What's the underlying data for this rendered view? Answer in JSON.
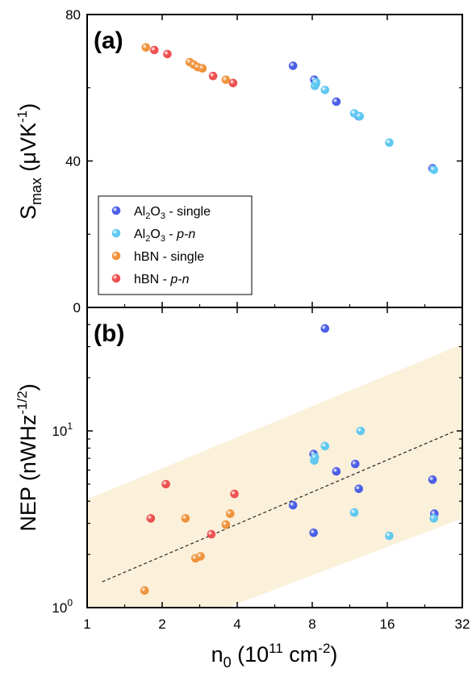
{
  "chart_data": [
    {
      "type": "scatter",
      "panel_label": "(a)",
      "ylabel": {
        "main": "S",
        "sub": "max",
        "unit": " (μVK",
        "sup": "-1",
        "close": ")"
      },
      "x_scale": "log2",
      "xlim": [
        1,
        32
      ],
      "ylim": [
        0,
        80
      ],
      "x_ticks": [
        1,
        2,
        4,
        8,
        16,
        32
      ],
      "y_ticks": [
        {
          "value": 0,
          "label": "0"
        },
        {
          "value": 40,
          "label": "40"
        },
        {
          "value": 80,
          "label": "80"
        }
      ],
      "legend": {
        "placement": "lower-left",
        "entries": [
          {
            "parts": [
              "Al",
              "2",
              "O",
              "3",
              " - single"
            ],
            "italic": false,
            "color": "#4a5ee8"
          },
          {
            "parts": [
              "Al",
              "2",
              "O",
              "3",
              " - ",
              "p-n"
            ],
            "italic": true,
            "color": "#5ec8f0"
          },
          {
            "parts": [
              "hBN - single"
            ],
            "italic": false,
            "color": "#f0923a"
          },
          {
            "parts": [
              "hBN - ",
              "p-n"
            ],
            "italic": true,
            "color": "#ee5050"
          }
        ]
      },
      "series": [
        {
          "name": "Al2O3 - single",
          "color": "#4a5ee8",
          "points": [
            [
              6.7,
              66
            ],
            [
              8.15,
              62.2
            ],
            [
              10,
              56.2
            ],
            [
              12.3,
              52.2
            ],
            [
              24.3,
              38
            ],
            [
              8.25,
              61
            ]
          ]
        },
        {
          "name": "Al2O3 - p-n",
          "color": "#5ec8f0",
          "points": [
            [
              8.2,
              60.5
            ],
            [
              9.0,
              59.4
            ],
            [
              11.8,
              53
            ],
            [
              12.4,
              52.2
            ],
            [
              16.3,
              45
            ],
            [
              24.6,
              37.6
            ],
            [
              8.3,
              61.5
            ]
          ]
        },
        {
          "name": "hBN - single",
          "color": "#f0923a",
          "points": [
            [
              1.72,
              71
            ],
            [
              2.58,
              67
            ],
            [
              2.68,
              66.3
            ],
            [
              2.78,
              65.6
            ],
            [
              2.9,
              65.3
            ],
            [
              3.6,
              62.2
            ]
          ]
        },
        {
          "name": "hBN - p-n",
          "color": "#ee5050",
          "points": [
            [
              1.86,
              70.3
            ],
            [
              2.1,
              69.2
            ],
            [
              3.2,
              63.2
            ],
            [
              3.85,
              61.3
            ]
          ]
        }
      ]
    },
    {
      "type": "scatter",
      "panel_label": "(b)",
      "ylabel": {
        "main": "NEP (nWHz",
        "sup": "-1/2",
        "close": ")"
      },
      "xlabel": {
        "main": "n",
        "sub": "0",
        "unit": "  (10",
        "sup": "11",
        "rest": " cm",
        "sup2": "-2",
        "close": ")"
      },
      "x_scale": "log2",
      "y_scale": "log10",
      "xlim": [
        1,
        32
      ],
      "ylim": [
        1,
        50
      ],
      "x_ticks": [
        {
          "value": 1,
          "label": "1"
        },
        {
          "value": 2,
          "label": "2"
        },
        {
          "value": 4,
          "label": "4"
        },
        {
          "value": 8,
          "label": "8"
        },
        {
          "value": 16,
          "label": "16"
        },
        {
          "value": 32,
          "label": "32"
        }
      ],
      "y_ticks": [
        {
          "value": 1,
          "base": "10",
          "exp": "0"
        },
        {
          "value": 10,
          "base": "10",
          "exp": "1"
        }
      ],
      "fit_line": {
        "x": [
          1.15,
          29.5
        ],
        "y": [
          1.4,
          9.9
        ],
        "style": "dashed"
      },
      "confidence_band": {
        "x": [
          1,
          32
        ],
        "upper": [
          4.1,
          31
        ],
        "lower": [
          0.5,
          3.2
        ],
        "color": "#fbf0da"
      },
      "series": [
        {
          "name": "Al2O3 - single",
          "color": "#4a5ee8",
          "points": [
            [
              6.7,
              3.8
            ],
            [
              8.1,
              2.65
            ],
            [
              8.1,
              7.4
            ],
            [
              9.0,
              38
            ],
            [
              10.0,
              5.9
            ],
            [
              11.9,
              6.5
            ],
            [
              12.3,
              4.7
            ],
            [
              24.3,
              5.3
            ],
            [
              24.7,
              3.4
            ]
          ]
        },
        {
          "name": "Al2O3 - p-n",
          "color": "#5ec8f0",
          "points": [
            [
              8.15,
              6.8
            ],
            [
              8.2,
              7.1
            ],
            [
              9.0,
              8.2
            ],
            [
              11.8,
              3.45
            ],
            [
              12.5,
              10
            ],
            [
              16.3,
              2.55
            ],
            [
              24.6,
              3.2
            ]
          ]
        },
        {
          "name": "hBN - single",
          "color": "#f0923a",
          "points": [
            [
              1.7,
              1.25
            ],
            [
              2.48,
              3.2
            ],
            [
              2.72,
              1.9
            ],
            [
              2.85,
              1.95
            ],
            [
              3.6,
              2.95
            ],
            [
              3.75,
              3.4
            ]
          ]
        },
        {
          "name": "hBN - p-n",
          "color": "#ee5050",
          "points": [
            [
              1.8,
              3.2
            ],
            [
              2.07,
              5.0
            ],
            [
              3.15,
              2.6
            ],
            [
              3.9,
              4.4
            ]
          ]
        }
      ]
    }
  ]
}
